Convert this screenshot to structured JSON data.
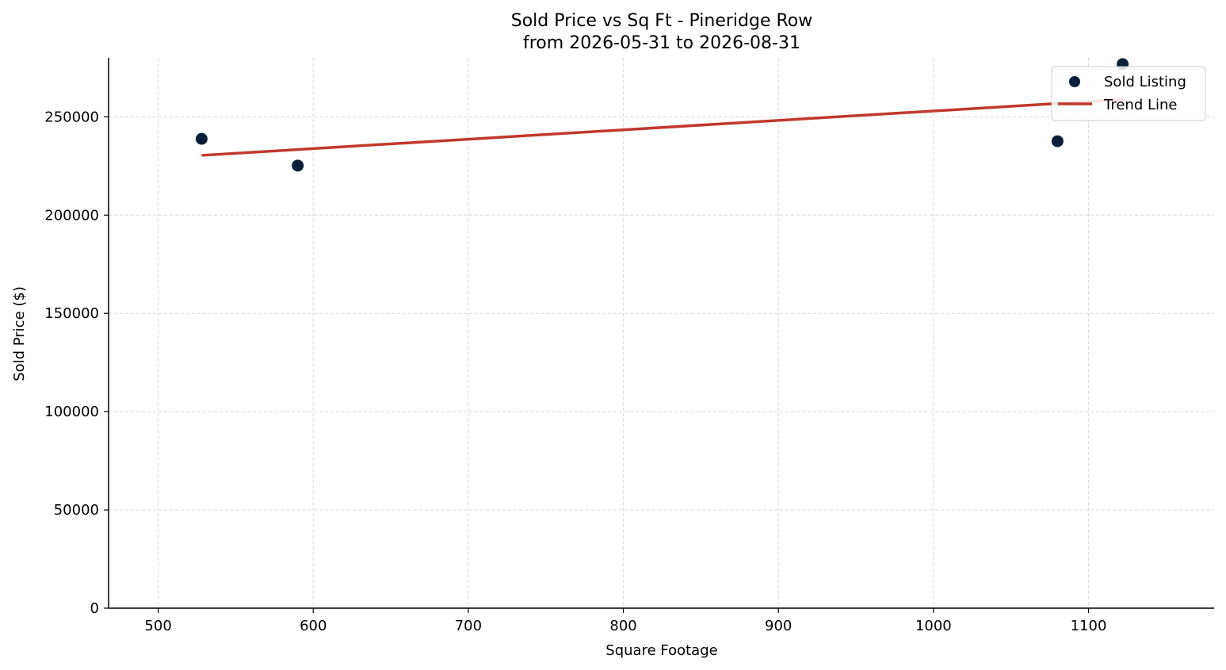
{
  "chart_data": {
    "type": "scatter",
    "title": "Sold Price vs Sq Ft - Pineridge Row",
    "subtitle": "from 2026-05-31 to 2026-08-31",
    "xlabel": "Square Footage",
    "ylabel": "Sold Price ($)",
    "xlim": [
      468,
      1181
    ],
    "ylim": [
      0,
      280000
    ],
    "x_ticks": [
      500,
      600,
      700,
      800,
      900,
      1000,
      1100
    ],
    "y_ticks": [
      0,
      50000,
      100000,
      150000,
      200000,
      250000
    ],
    "grid": true,
    "legend_position": "top-right",
    "series": [
      {
        "name": "Sold Listing",
        "kind": "scatter",
        "color": "#0b1f3a",
        "points": [
          {
            "x": 528,
            "y": 238800
          },
          {
            "x": 590,
            "y": 225200
          },
          {
            "x": 1080,
            "y": 237600
          },
          {
            "x": 1122,
            "y": 276800
          }
        ]
      },
      {
        "name": "Trend Line",
        "kind": "line",
        "color": "#c0392b",
        "points": [
          {
            "x": 528,
            "y": 230400
          },
          {
            "x": 1122,
            "y": 258800
          }
        ]
      }
    ]
  }
}
